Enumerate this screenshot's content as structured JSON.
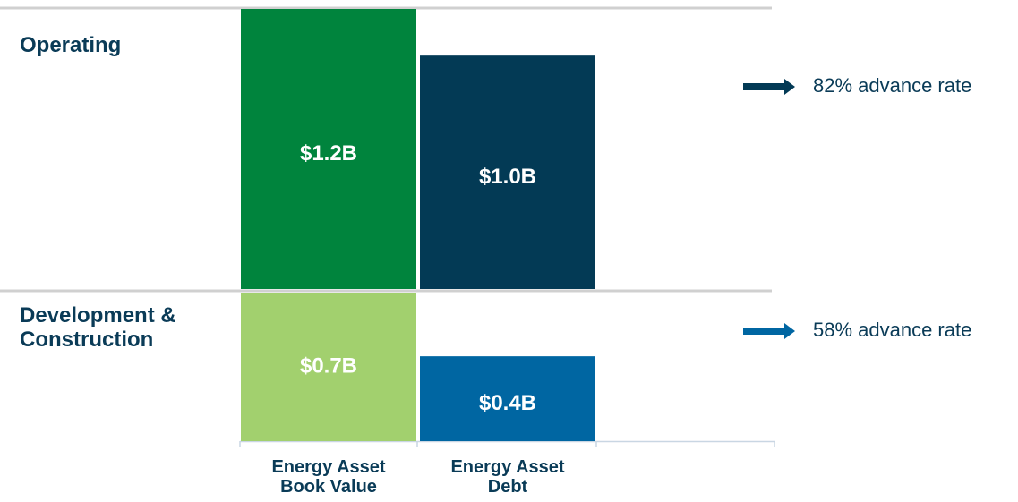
{
  "chart_data": {
    "type": "bar",
    "categories": [
      "Energy Asset Book Value",
      "Energy Asset Debt"
    ],
    "series": [
      {
        "name": "Operating",
        "colors": [
          "#00843d",
          "#033a55"
        ],
        "values": [
          1.2,
          1.0
        ],
        "value_labels": [
          "$1.2B",
          "$1.0B"
        ],
        "annotation": "82% advance rate"
      },
      {
        "name": "Development & Construction",
        "colors": [
          "#a2d06e",
          "#0066a2"
        ],
        "values": [
          0.7,
          0.4
        ],
        "value_labels": [
          "$0.7B",
          "$0.4B"
        ],
        "annotation": "58% advance rate"
      }
    ]
  }
}
